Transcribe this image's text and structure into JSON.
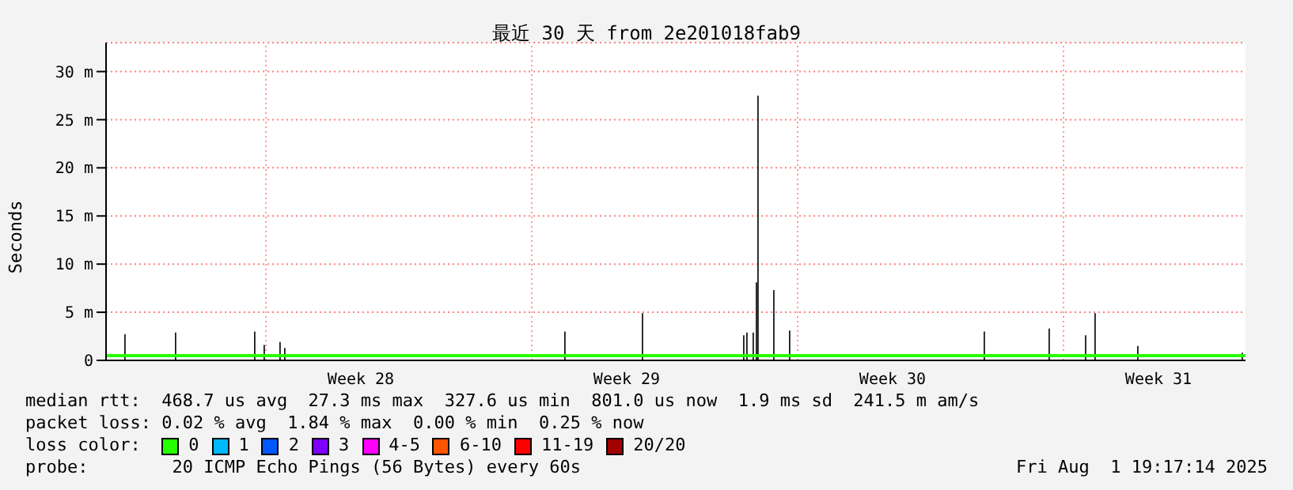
{
  "chart_data": {
    "type": "bar",
    "title": "最近 30 天 from 2e201018fab9",
    "ylabel": "Seconds",
    "xlim": [
      "2025-07-02T19:00",
      "2025-08-01T19:00"
    ],
    "xticks": [
      {
        "value": "2025-07-09T12:00",
        "label": "Week 28"
      },
      {
        "value": "2025-07-16T12:00",
        "label": "Week 29"
      },
      {
        "value": "2025-07-23T12:00",
        "label": "Week 30"
      },
      {
        "value": "2025-07-30T12:00",
        "label": "Week 31"
      }
    ],
    "ylim": [
      0,
      33
    ],
    "yticks": [
      0,
      {
        "value": 5,
        "label": "5 m"
      },
      {
        "value": 10,
        "label": "10 m"
      },
      {
        "value": 15,
        "label": "15 m"
      },
      {
        "value": 20,
        "label": "20 m"
      },
      {
        "value": 25,
        "label": "25 m"
      },
      {
        "value": 30,
        "label": "30 m"
      }
    ],
    "grid": "y",
    "legend": "bottom",
    "legend_title": "loss color:",
    "ref_lines": [
      {
        "axis": "x",
        "value": "2025-07-07T00:00",
        "color": "#ff9999",
        "line_style": "dotted"
      },
      {
        "axis": "x",
        "value": "2025-07-14T00:00",
        "color": "#ff9999",
        "line_style": "dotted"
      },
      {
        "axis": "x",
        "value": "2025-07-21T00:00",
        "color": "#ff9999",
        "line_style": "dotted"
      },
      {
        "axis": "x",
        "value": "2025-07-28T00:00",
        "color": "#ff9999",
        "line_style": "dotted"
      }
    ],
    "series": [
      {
        "color": "#1a1a1a",
        "x": [
          "2025-07-03T07:00",
          "2025-07-04T15:00",
          "2025-07-06T17:00",
          "2025-07-06T23:00",
          "2025-07-07T09:00",
          "2025-07-07T12:00",
          "2025-07-14T21:00",
          "2025-07-16T22:00",
          "2025-07-19T14:00",
          "2025-07-19T16:00",
          "2025-07-19T20:00",
          "2025-07-19T22:00",
          "2025-07-19T23:00",
          "2025-07-20T09:00",
          "2025-07-20T19:00",
          "2025-07-25T22:00",
          "2025-07-27T15:00",
          "2025-07-28T14:00",
          "2025-07-28T20:00",
          "2025-07-29T23:00",
          "2025-08-01T17:00"
        ],
        "values": [
          2.7,
          2.9,
          3.0,
          1.6,
          1.9,
          1.3,
          3.0,
          4.9,
          2.6,
          2.9,
          2.9,
          8.1,
          27.5,
          7.3,
          3.1,
          3.0,
          3.3,
          2.6,
          4.9,
          1.5,
          0.8
        ]
      },
      {
        "type": "line",
        "name": "0",
        "color": "#26ff00",
        "x": [
          "2025-07-02T19:00",
          "2025-08-01T19:00"
        ],
        "values": [
          0.5,
          0.5
        ]
      },
      {
        "type": "line",
        "name": "1",
        "color": "#00b8ff"
      },
      {
        "type": "line",
        "name": "2",
        "color": "#0059ff"
      },
      {
        "type": "line",
        "name": "3",
        "color": "#7e00ff"
      },
      {
        "type": "line",
        "name": "4-5",
        "color": "#ff00ff"
      },
      {
        "type": "line",
        "name": "6-10",
        "color": "#ff5500"
      },
      {
        "type": "line",
        "name": "11-19",
        "color": "#ff0000"
      },
      {
        "type": "line",
        "name": "20/20",
        "color": "#a10000"
      }
    ],
    "annotations": [
      "median rtt:  468.7 us avg  27.3 ms max  327.6 us min  801.0 us now  1.9 ms sd  241.5 m am/s",
      "packet loss: 0.02 % avg  1.84 % max  0.00 % min  0.25 % now",
      "probe:        20 ICMP Echo Pings (56 Bytes) every 60s",
      "Fri Aug  1 19:17:14 2025"
    ]
  }
}
